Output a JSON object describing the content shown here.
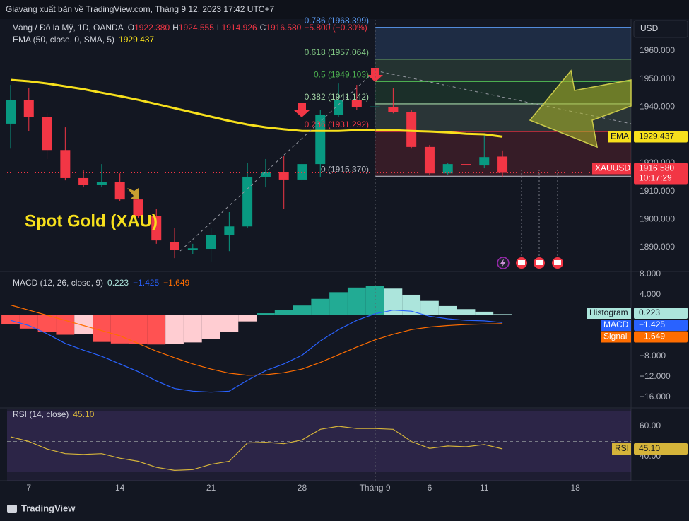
{
  "header": {
    "text": "Giavang xuất bản về TradingView.com, Tháng 9 12, 2023 17:42 UTC+7"
  },
  "footer": {
    "brand": "TradingView"
  },
  "chart_data": [
    {
      "type": "candlestick",
      "symbol": "Vàng / Đô la Mỹ, 1D, OANDA",
      "ohlc_labels": [
        {
          "key": "O",
          "label": "1922.380"
        },
        {
          "key": "H",
          "label": "1924.555"
        },
        {
          "key": "L",
          "label": "1914.926"
        },
        {
          "key": "C",
          "label": "1916.580"
        }
      ],
      "change": "−5.800 (−0.30%)",
      "currency": "USD",
      "annotation": "Spot Gold (XAU)",
      "categories": [
        null,
        "7",
        null,
        null,
        null,
        null,
        "14",
        null,
        null,
        null,
        null,
        "21",
        null,
        null,
        null,
        null,
        "28",
        null,
        null,
        null,
        "Tháng 9",
        null,
        null,
        "6",
        null,
        null,
        "11",
        null,
        null,
        null,
        null,
        "18"
      ],
      "series": [
        {
          "name": "XAUUSD",
          "up_color": "#089981",
          "down_color": "#f23645",
          "last_label": "1916.580",
          "countdown": "10:17:29",
          "open": [
            1934.1,
            1942.4,
            1936.6,
            1924.7,
            1914.7,
            1912.2,
            1913.2,
            1907.1,
            1901.3,
            1892.0,
            1889.2,
            1889.5,
            1894.5,
            1897.5,
            1915.2,
            1916.7,
            1914.2,
            1919.7,
            1937.3,
            1942.4,
            1939.9,
            1939.9,
            1938.3,
            1925.8,
            1916.4,
            1919.7,
            1919.2,
            1922.38,
            null,
            null,
            null,
            null
          ],
          "high": [
            1947.9,
            1946.7,
            1937.8,
            1932.8,
            1917.7,
            1919.7,
            1916.4,
            1910.1,
            1903.8,
            1897.0,
            1891.3,
            1897.0,
            1902.6,
            1920.2,
            1921.5,
            1922.7,
            1921.5,
            1939.1,
            1948.4,
            1947.9,
            1949.1,
            1946.7,
            1939.1,
            1926.5,
            1920.2,
            1929.8,
            1930.3,
            1924.555,
            null,
            null,
            null,
            null
          ],
          "low": [
            1925.2,
            1931.5,
            1921.5,
            1913.9,
            1911.4,
            1911.4,
            1906.4,
            1900.6,
            1891.3,
            1886.2,
            1887.5,
            1885.0,
            1888.7,
            1897.0,
            1911.4,
            1903.8,
            1913.2,
            1915.2,
            1936.6,
            1939.1,
            1936.1,
            1937.8,
            1925.2,
            1915.7,
            1915.9,
            1917.7,
            1918.2,
            1914.926,
            null,
            null,
            null,
            null
          ],
          "close": [
            1942.4,
            1936.6,
            1924.7,
            1914.7,
            1912.2,
            1913.2,
            1907.1,
            1901.3,
            1892.5,
            1889.0,
            1889.7,
            1894.5,
            1897.5,
            1915.2,
            1916.7,
            1914.2,
            1919.7,
            1937.3,
            1942.4,
            1939.9,
            1940.2,
            1938.3,
            1925.8,
            1916.4,
            1919.7,
            1919.5,
            1922.2,
            1916.58,
            null,
            null,
            null,
            null
          ]
        }
      ],
      "ema": {
        "name": "EMA",
        "legend": "EMA (50, close, 0, SMA, 5)",
        "color": "#f7e01c",
        "values": [
          1949.7,
          1949.2,
          1948.4,
          1947.4,
          1946.4,
          1945.1,
          1943.9,
          1942.6,
          1941.1,
          1939.6,
          1938.1,
          1936.6,
          1935.1,
          1933.8,
          1932.8,
          1932.1,
          1931.5,
          1931.5,
          1931.5,
          1931.8,
          1931.8,
          1931.8,
          1931.5,
          1931.3,
          1931.0,
          1930.5,
          1930.3,
          1929.437,
          null,
          null,
          null,
          null
        ]
      },
      "fib_levels": [
        {
          "label": "0.786 (1968.399)",
          "value": 1968.399,
          "color": "#5b9cf6"
        },
        {
          "label": "0.618 (1957.064)",
          "value": 1957.064,
          "color": "#81c784"
        },
        {
          "label": "0.5 (1949.103)",
          "value": 1949.103,
          "color": "#4caf50"
        },
        {
          "label": "0.382 (1941.142)",
          "value": 1941.142,
          "color": "#a5d6a7"
        },
        {
          "label": "0.236 (1931.292)",
          "value": 1931.292,
          "color": "#f23645"
        },
        {
          "label": "0 (1915.370)",
          "value": 1915.37,
          "color": "#b2b5be"
        }
      ],
      "ylim": [
        1881.7,
        1971.1
      ],
      "yticks": [
        {
          "value": 1890,
          "label": "1890.000"
        },
        {
          "value": 1900,
          "label": "1900.000"
        },
        {
          "value": 1910,
          "label": "1910.000"
        },
        {
          "value": 1920,
          "label": "1920.000"
        },
        {
          "value": 1930,
          "label": "1930.000"
        },
        {
          "value": 1940,
          "label": "1940.000"
        },
        {
          "value": 1950,
          "label": "1950.000"
        },
        {
          "value": 1960,
          "label": "1960.000"
        }
      ]
    },
    {
      "type": "macd",
      "legend": "MACD (12, 26, close, 9)",
      "ylim": [
        -17.8,
        8.41
      ],
      "yticks": [
        {
          "value": 8,
          "label": "8.000"
        },
        {
          "value": 4,
          "label": "4.000"
        },
        {
          "value": -8,
          "label": "−8.000"
        },
        {
          "value": -12,
          "label": "−12.000"
        },
        {
          "value": -16,
          "label": "−16.000"
        }
      ],
      "histogram": {
        "name": "Histogram",
        "last_label": "0.223",
        "colors": {
          "grow_above": "#22ab94",
          "fall_above": "#ace5dc",
          "grow_below": "#ffcdd2",
          "fall_below": "#ff5252"
        },
        "values": [
          -1.8,
          -2.6,
          -3.2,
          -3.8,
          -3.7,
          -5.2,
          -5.5,
          -5.6,
          -5.7,
          -5.6,
          -5.3,
          -4.6,
          -3.2,
          -1.2,
          0.4,
          1.1,
          1.9,
          3.2,
          4.5,
          5.4,
          5.7,
          5.2,
          4.0,
          2.8,
          1.8,
          1.2,
          0.7,
          0.223,
          null,
          null,
          null,
          null
        ]
      },
      "series": [
        {
          "name": "MACD",
          "color": "#2962ff",
          "last_label": "−1.425",
          "values": [
            -1.0,
            -2.0,
            -3.6,
            -5.5,
            -6.8,
            -8.0,
            -9.5,
            -11.0,
            -12.8,
            -14.3,
            -14.8,
            -15.0,
            -14.8,
            -12.7,
            -10.8,
            -9.5,
            -7.8,
            -5.0,
            -2.8,
            -1.0,
            0.3,
            1.0,
            0.8,
            -0.2,
            -0.7,
            -1.0,
            -1.1,
            -1.425,
            null,
            null,
            null,
            null
          ]
        },
        {
          "name": "Signal",
          "color": "#ff6d00",
          "last_label": "−1.649",
          "values": [
            2.0,
            1.0,
            0.0,
            -1.0,
            -2.0,
            -3.0,
            -4.0,
            -5.5,
            -7.0,
            -8.3,
            -9.5,
            -10.5,
            -11.3,
            -11.7,
            -11.6,
            -11.2,
            -10.5,
            -9.2,
            -7.7,
            -6.2,
            -4.8,
            -3.7,
            -2.8,
            -2.3,
            -2.0,
            -1.8,
            -1.7,
            -1.649,
            null,
            null,
            null,
            null
          ]
        }
      ]
    },
    {
      "type": "rsi",
      "legend": "RSI (14, close)",
      "ylim": [
        24.2,
        71.6
      ],
      "yticks": [
        {
          "value": 60,
          "label": "60.00"
        },
        {
          "value": 40,
          "label": "40.00"
        }
      ],
      "levels": [
        70,
        50,
        30
      ],
      "band_color": "#7e57c2",
      "series": [
        {
          "name": "RSI",
          "color": "#d5b43a",
          "last_label": "45.10",
          "values": [
            53,
            50,
            45,
            42,
            41.5,
            42,
            39,
            37,
            33,
            31,
            31.5,
            35,
            37,
            49,
            49.5,
            48.5,
            51,
            58,
            60,
            58.5,
            58.5,
            58,
            50,
            45.5,
            47,
            46.5,
            48,
            45.1,
            null,
            null,
            null,
            null
          ]
        }
      ]
    }
  ]
}
